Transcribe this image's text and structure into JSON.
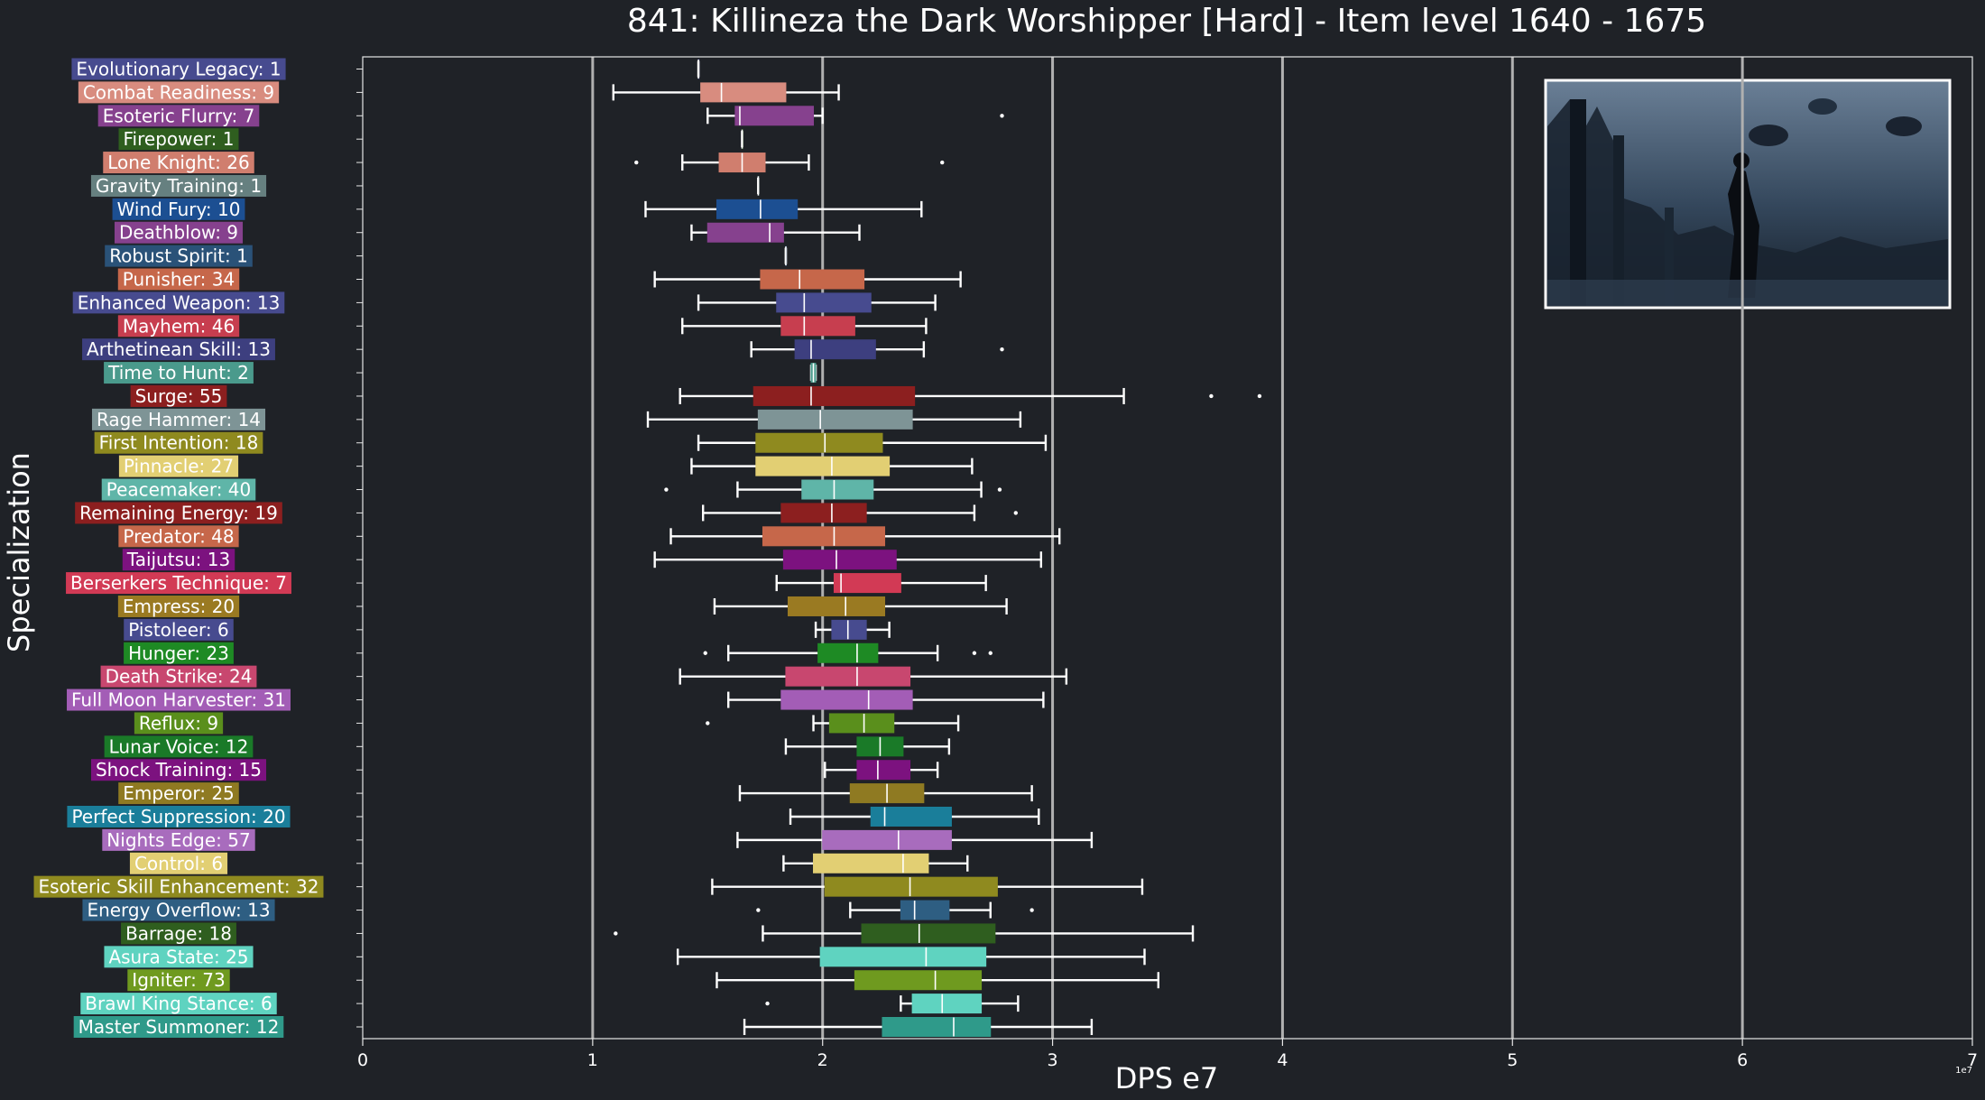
{
  "chart_data": {
    "type": "boxplot",
    "title": "841: Killineza the Dark Worshipper [Hard] - Item level 1640 - 1675",
    "xlabel": "DPS e7",
    "ylabel": "Specialization",
    "x_ticks": [
      0,
      1,
      2,
      3,
      4,
      5,
      6,
      7
    ],
    "x_scale_note": "1e7",
    "xlim": [
      0,
      7
    ],
    "vertical_gridlines": [
      1,
      2,
      3,
      4,
      5,
      6
    ],
    "legend": "none",
    "colors": {
      "background": "#1f2227",
      "text": "#ffffff",
      "grid": "#b0b0b0",
      "whisker": "#ffffff"
    },
    "series": [
      {
        "label": "Evolutionary Legacy: 1",
        "color": "#474b8f",
        "lw": 1.46,
        "q1": 1.46,
        "med": 1.46,
        "q3": 1.46,
        "hw": 1.46,
        "fliers": []
      },
      {
        "label": "Combat Readiness: 9",
        "color": "#d88c7f",
        "lw": 1.09,
        "q1": 1.47,
        "med": 1.56,
        "q3": 1.84,
        "hw": 2.07,
        "fliers": []
      },
      {
        "label": "Esoteric Flurry: 7",
        "color": "#86418e",
        "lw": 1.5,
        "q1": 1.62,
        "med": 1.64,
        "q3": 1.96,
        "hw": 2.0,
        "fliers": [
          2.78
        ]
      },
      {
        "label": "Firepower: 1",
        "color": "#2f5e1f",
        "lw": 1.65,
        "q1": 1.65,
        "med": 1.65,
        "q3": 1.65,
        "hw": 1.65,
        "fliers": []
      },
      {
        "label": "Lone Knight: 26",
        "color": "#d07e6e",
        "lw": 1.39,
        "q1": 1.55,
        "med": 1.65,
        "q3": 1.75,
        "hw": 1.94,
        "fliers": [
          1.19,
          2.52
        ]
      },
      {
        "label": "Gravity Training: 1",
        "color": "#668080",
        "lw": 1.72,
        "q1": 1.72,
        "med": 1.72,
        "q3": 1.72,
        "hw": 1.72,
        "fliers": []
      },
      {
        "label": "Wind Fury: 10",
        "color": "#1c4f92",
        "lw": 1.23,
        "q1": 1.54,
        "med": 1.73,
        "q3": 1.89,
        "hw": 2.43,
        "fliers": []
      },
      {
        "label": "Deathblow: 9",
        "color": "#86418e",
        "lw": 1.43,
        "q1": 1.5,
        "med": 1.77,
        "q3": 1.83,
        "hw": 2.16,
        "fliers": []
      },
      {
        "label": "Robust Spirit: 1",
        "color": "#2a5278",
        "lw": 1.84,
        "q1": 1.84,
        "med": 1.84,
        "q3": 1.84,
        "hw": 1.84,
        "fliers": []
      },
      {
        "label": "Punisher: 34",
        "color": "#c6674a",
        "lw": 1.27,
        "q1": 1.73,
        "med": 1.9,
        "q3": 2.18,
        "hw": 2.6,
        "fliers": []
      },
      {
        "label": "Enhanced Weapon: 13",
        "color": "#474b8f",
        "lw": 1.46,
        "q1": 1.8,
        "med": 1.92,
        "q3": 2.21,
        "hw": 2.49,
        "fliers": []
      },
      {
        "label": "Mayhem: 46",
        "color": "#c73e4f",
        "lw": 1.39,
        "q1": 1.82,
        "med": 1.92,
        "q3": 2.14,
        "hw": 2.45,
        "fliers": []
      },
      {
        "label": "Arthetinean Skill: 13",
        "color": "#3d3f7f",
        "lw": 1.69,
        "q1": 1.88,
        "med": 1.95,
        "q3": 2.23,
        "hw": 2.44,
        "fliers": [
          2.78
        ]
      },
      {
        "label": "Time to Hunt: 2",
        "color": "#4a9a8c",
        "lw": 1.95,
        "q1": 1.95,
        "med": 1.96,
        "q3": 1.97,
        "hw": 1.97,
        "fliers": []
      },
      {
        "label": "Surge: 55",
        "color": "#8c1f1f",
        "lw": 1.38,
        "q1": 1.7,
        "med": 1.95,
        "q3": 2.4,
        "hw": 3.31,
        "fliers": [
          3.69,
          3.9
        ]
      },
      {
        "label": "Rage Hammer: 14",
        "color": "#7e9496",
        "lw": 1.24,
        "q1": 1.72,
        "med": 1.99,
        "q3": 2.39,
        "hw": 2.86,
        "fliers": []
      },
      {
        "label": "First Intention: 18",
        "color": "#8f8a1f",
        "lw": 1.46,
        "q1": 1.71,
        "med": 2.01,
        "q3": 2.26,
        "hw": 2.97,
        "fliers": []
      },
      {
        "label": "Pinnacle: 27",
        "color": "#e2cf73",
        "lw": 1.43,
        "q1": 1.71,
        "med": 2.04,
        "q3": 2.29,
        "hw": 2.65,
        "fliers": []
      },
      {
        "label": "Peacemaker: 40",
        "color": "#5fb5a8",
        "lw": 1.63,
        "q1": 1.91,
        "med": 2.05,
        "q3": 2.22,
        "hw": 2.69,
        "fliers": [
          1.32,
          2.77
        ]
      },
      {
        "label": "Remaining Energy: 19",
        "color": "#8c1f1f",
        "lw": 1.48,
        "q1": 1.82,
        "med": 2.04,
        "q3": 2.19,
        "hw": 2.66,
        "fliers": [
          2.84
        ]
      },
      {
        "label": "Predator: 48",
        "color": "#c6674a",
        "lw": 1.34,
        "q1": 1.74,
        "med": 2.05,
        "q3": 2.27,
        "hw": 3.03,
        "fliers": []
      },
      {
        "label": "Taijutsu: 13",
        "color": "#7c127f",
        "lw": 1.27,
        "q1": 1.83,
        "med": 2.06,
        "q3": 2.32,
        "hw": 2.95,
        "fliers": []
      },
      {
        "label": "Berserkers Technique: 7",
        "color": "#d23a55",
        "lw": 1.8,
        "q1": 2.05,
        "med": 2.08,
        "q3": 2.34,
        "hw": 2.71,
        "fliers": []
      },
      {
        "label": "Empress: 20",
        "color": "#9a7a22",
        "lw": 1.53,
        "q1": 1.85,
        "med": 2.1,
        "q3": 2.27,
        "hw": 2.8,
        "fliers": []
      },
      {
        "label": "Pistoleer: 6",
        "color": "#474b8f",
        "lw": 1.97,
        "q1": 2.04,
        "med": 2.11,
        "q3": 2.19,
        "hw": 2.29,
        "fliers": []
      },
      {
        "label": "Hunger: 23",
        "color": "#1e8a24",
        "lw": 1.59,
        "q1": 1.98,
        "med": 2.15,
        "q3": 2.24,
        "hw": 2.5,
        "fliers": [
          1.49,
          2.66,
          2.73
        ]
      },
      {
        "label": "Death Strike: 24",
        "color": "#c8476f",
        "lw": 1.38,
        "q1": 1.84,
        "med": 2.15,
        "q3": 2.38,
        "hw": 3.06,
        "fliers": []
      },
      {
        "label": "Full Moon Harvester: 31",
        "color": "#a35db6",
        "lw": 1.59,
        "q1": 1.82,
        "med": 2.2,
        "q3": 2.39,
        "hw": 2.96,
        "fliers": []
      },
      {
        "label": "Reflux: 9",
        "color": "#5a8f1c",
        "lw": 1.96,
        "q1": 2.03,
        "med": 2.18,
        "q3": 2.31,
        "hw": 2.59,
        "fliers": [
          1.5
        ]
      },
      {
        "label": "Lunar Voice: 12",
        "color": "#1a7a28",
        "lw": 1.84,
        "q1": 2.15,
        "med": 2.25,
        "q3": 2.35,
        "hw": 2.55,
        "fliers": []
      },
      {
        "label": "Shock Training: 15",
        "color": "#7c127f",
        "lw": 2.01,
        "q1": 2.15,
        "med": 2.24,
        "q3": 2.38,
        "hw": 2.5,
        "fliers": []
      },
      {
        "label": "Emperor: 25",
        "color": "#8f7a22",
        "lw": 1.64,
        "q1": 2.12,
        "med": 2.28,
        "q3": 2.44,
        "hw": 2.91,
        "fliers": []
      },
      {
        "label": "Perfect Suppression: 20",
        "color": "#1a7e9a",
        "lw": 1.86,
        "q1": 2.21,
        "med": 2.27,
        "q3": 2.56,
        "hw": 2.94,
        "fliers": []
      },
      {
        "label": "Nights Edge: 57",
        "color": "#a86cbd",
        "lw": 1.63,
        "q1": 2.0,
        "med": 2.33,
        "q3": 2.56,
        "hw": 3.17,
        "fliers": []
      },
      {
        "label": "Control: 6",
        "color": "#e2cf73",
        "lw": 1.83,
        "q1": 1.96,
        "med": 2.35,
        "q3": 2.46,
        "hw": 2.63,
        "fliers": []
      },
      {
        "label": "Esoteric Skill Enhancement: 32",
        "color": "#8f8a1f",
        "lw": 1.52,
        "q1": 2.01,
        "med": 2.38,
        "q3": 2.76,
        "hw": 3.39,
        "fliers": []
      },
      {
        "label": "Energy Overflow: 13",
        "color": "#2e5e82",
        "lw": 2.12,
        "q1": 2.34,
        "med": 2.4,
        "q3": 2.55,
        "hw": 2.73,
        "fliers": [
          1.72,
          2.91
        ]
      },
      {
        "label": "Barrage: 18",
        "color": "#2f5e1f",
        "lw": 1.74,
        "q1": 2.17,
        "med": 2.42,
        "q3": 2.75,
        "hw": 3.61,
        "fliers": [
          1.1
        ]
      },
      {
        "label": "Asura State: 25",
        "color": "#5fd3c0",
        "lw": 1.37,
        "q1": 1.99,
        "med": 2.45,
        "q3": 2.71,
        "hw": 3.4,
        "fliers": []
      },
      {
        "label": "Igniter: 73",
        "color": "#6f9a1f",
        "lw": 1.54,
        "q1": 2.14,
        "med": 2.49,
        "q3": 2.69,
        "hw": 3.46,
        "fliers": []
      },
      {
        "label": "Brawl King Stance: 6",
        "color": "#5fd3c0",
        "lw": 2.34,
        "q1": 2.39,
        "med": 2.52,
        "q3": 2.69,
        "hw": 2.85,
        "fliers": [
          1.76
        ]
      },
      {
        "label": "Master Summoner: 12",
        "color": "#2f9a8a",
        "lw": 1.66,
        "q1": 2.26,
        "med": 2.57,
        "q3": 2.73,
        "hw": 3.17,
        "fliers": []
      }
    ]
  }
}
